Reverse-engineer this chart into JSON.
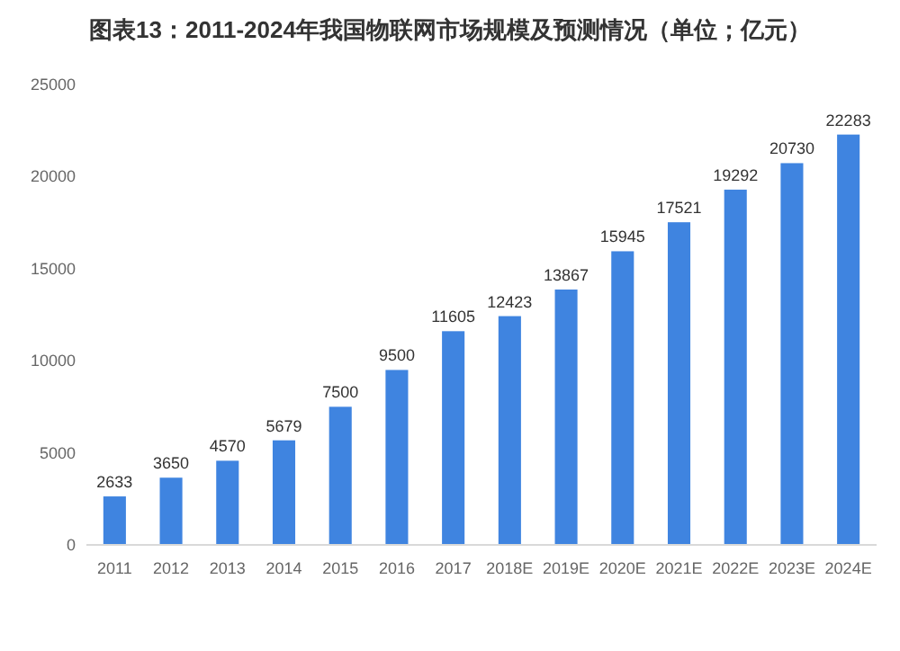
{
  "chart_data": {
    "type": "bar",
    "title": "图表13：2011-2024年我国物联网市场规模及预测情况（单位；亿元）",
    "categories": [
      "2011",
      "2012",
      "2013",
      "2014",
      "2015",
      "2016",
      "2017",
      "2018E",
      "2019E",
      "2020E",
      "2021E",
      "2022E",
      "2023E",
      "2024E"
    ],
    "values": [
      2633,
      3650,
      4570,
      5679,
      7500,
      9500,
      11605,
      12423,
      13867,
      15945,
      17521,
      19292,
      20730,
      22283
    ],
    "color": "#3f84e0",
    "ylim": [
      0,
      25000
    ],
    "yticks": [
      0,
      5000,
      10000,
      15000,
      20000,
      25000
    ],
    "grid": false,
    "data_labels": true
  }
}
